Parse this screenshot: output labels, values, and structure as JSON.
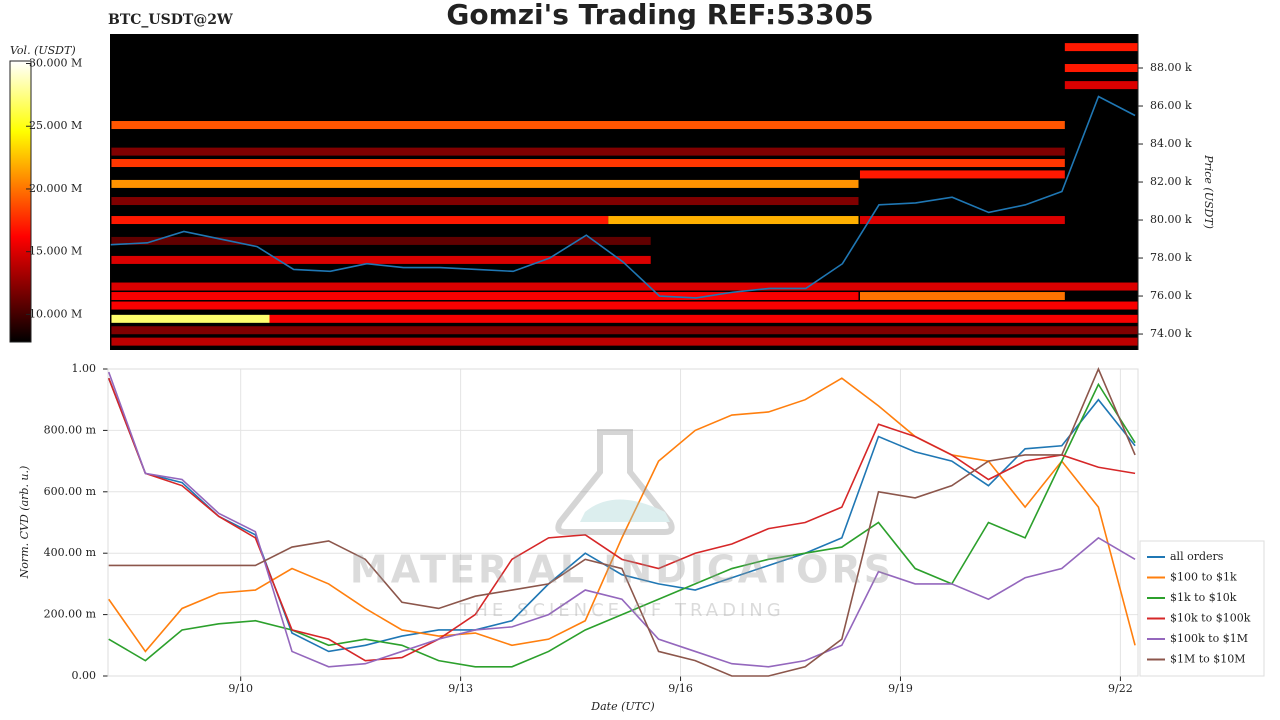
{
  "chart_data": [
    {
      "type": "heatmap",
      "title": "Gomzi's Trading REF:53305",
      "subtitle": "BTC_USDT@2W",
      "ylabel": "Price (USDT)",
      "xlim": [
        8.19,
        22.24
      ],
      "ylim": [
        73160,
        89790
      ],
      "yticks": [
        {
          "value": 74000,
          "label": "74.00 k"
        },
        {
          "value": 76000,
          "label": "76.00 k"
        },
        {
          "value": 78000,
          "label": "78.00 k"
        },
        {
          "value": 80000,
          "label": "80.00 k"
        },
        {
          "value": 82000,
          "label": "82.00 k"
        },
        {
          "value": 84000,
          "label": "84.00 k"
        },
        {
          "value": 86000,
          "label": "86.00 k"
        },
        {
          "value": 88000,
          "label": "88.00 k"
        }
      ],
      "colorbar": {
        "label": "Vol. (USDT)",
        "lim": [
          7800000,
          30200000
        ],
        "ticks": [
          {
            "value": 10000000,
            "label": "10.000 M"
          },
          {
            "value": 15000000,
            "label": "15.000 M"
          },
          {
            "value": 20000000,
            "label": "20.000 M"
          },
          {
            "value": 25000000,
            "label": "25.000 M"
          },
          {
            "value": 30000000,
            "label": "30.000 M"
          }
        ]
      },
      "bands": [
        {
          "price": 85000,
          "start": 8.21,
          "end": 21.24,
          "volume": 19000000
        },
        {
          "price": 83600,
          "start": 8.21,
          "end": 21.24,
          "volume": 12000000
        },
        {
          "price": 83000,
          "start": 8.21,
          "end": 21.24,
          "volume": 18000000
        },
        {
          "price": 81900,
          "start": 8.21,
          "end": 18.42,
          "volume": 21000000
        },
        {
          "price": 82400,
          "start": 18.44,
          "end": 21.24,
          "volume": 17000000
        },
        {
          "price": 81000,
          "start": 8.21,
          "end": 18.42,
          "volume": 12000000
        },
        {
          "price": 80000,
          "start": 8.21,
          "end": 15.0,
          "volume": 17000000
        },
        {
          "price": 80000,
          "start": 15.0,
          "end": 18.42,
          "volume": 22000000
        },
        {
          "price": 80000,
          "start": 18.44,
          "end": 21.24,
          "volume": 15000000
        },
        {
          "price": 78900,
          "start": 8.21,
          "end": 15.58,
          "volume": 11000000
        },
        {
          "price": 77900,
          "start": 8.21,
          "end": 15.58,
          "volume": 15000000
        },
        {
          "price": 76500,
          "start": 8.21,
          "end": 22.24,
          "volume": 15000000
        },
        {
          "price": 76000,
          "start": 8.21,
          "end": 18.42,
          "volume": 16000000
        },
        {
          "price": 76000,
          "start": 18.44,
          "end": 21.24,
          "volume": 20000000
        },
        {
          "price": 75500,
          "start": 8.21,
          "end": 22.24,
          "volume": 16000000
        },
        {
          "price": 74800,
          "start": 8.21,
          "end": 10.37,
          "volume": 27000000
        },
        {
          "price": 74800,
          "start": 10.37,
          "end": 22.24,
          "volume": 16000000
        },
        {
          "price": 74200,
          "start": 8.21,
          "end": 22.24,
          "volume": 12000000
        },
        {
          "price": 73600,
          "start": 8.21,
          "end": 22.24,
          "volume": 14000000
        },
        {
          "price": 89100,
          "start": 21.24,
          "end": 22.24,
          "volume": 17000000
        },
        {
          "price": 88000,
          "start": 21.24,
          "end": 22.24,
          "volume": 17000000
        },
        {
          "price": 87100,
          "start": 21.24,
          "end": 22.24,
          "volume": 15000000
        }
      ],
      "price": {
        "color": "#1f77b4",
        "x": [
          8.2,
          8.7,
          9.2,
          9.7,
          10.2,
          10.7,
          11.2,
          11.7,
          12.2,
          12.7,
          13.2,
          13.7,
          14.2,
          14.7,
          15.2,
          15.7,
          16.2,
          16.7,
          17.2,
          17.7,
          18.2,
          18.7,
          19.2,
          19.7,
          20.2,
          20.7,
          21.2,
          21.7,
          22.2
        ],
        "values": [
          78700,
          78800,
          79400,
          79000,
          78600,
          77400,
          77300,
          77700,
          77500,
          77500,
          77400,
          77300,
          78000,
          79200,
          77800,
          76000,
          75900,
          76200,
          76400,
          76400,
          77700,
          80800,
          80900,
          81200,
          80400,
          80800,
          81500,
          86500,
          85500
        ]
      }
    },
    {
      "type": "line",
      "xlabel": "Date (UTC)",
      "ylabel": "Norm. CVD (arb. u.)",
      "xlim": [
        8.19,
        22.24
      ],
      "ylim": [
        0,
        1
      ],
      "grid": true,
      "legend": "lower right",
      "xticks": [
        {
          "value": 10,
          "label": "9/10"
        },
        {
          "value": 13,
          "label": "9/13"
        },
        {
          "value": 16,
          "label": "9/16"
        },
        {
          "value": 19,
          "label": "9/19"
        },
        {
          "value": 22,
          "label": "9/22"
        }
      ],
      "yticks": [
        {
          "value": 0,
          "label": "0.00"
        },
        {
          "value": 0.2,
          "label": "200.00 m"
        },
        {
          "value": 0.4,
          "label": "400.00 m"
        },
        {
          "value": 0.6,
          "label": "600.00 m"
        },
        {
          "value": 0.8,
          "label": "800.00 m"
        },
        {
          "value": 1,
          "label": "1.00"
        }
      ],
      "x": [
        8.2,
        8.7,
        9.2,
        9.7,
        10.2,
        10.7,
        11.2,
        11.7,
        12.2,
        12.7,
        13.2,
        13.7,
        14.2,
        14.7,
        15.2,
        15.7,
        16.2,
        16.7,
        17.2,
        17.7,
        18.2,
        18.7,
        19.2,
        19.7,
        20.2,
        20.7,
        21.2,
        21.7,
        22.2
      ],
      "series": [
        {
          "name": "all orders",
          "color": "#1f77b4",
          "values": [
            0.97,
            0.66,
            0.63,
            0.52,
            0.46,
            0.14,
            0.08,
            0.1,
            0.13,
            0.15,
            0.15,
            0.18,
            0.3,
            0.4,
            0.33,
            0.3,
            0.28,
            0.32,
            0.36,
            0.4,
            0.45,
            0.78,
            0.73,
            0.7,
            0.62,
            0.74,
            0.75,
            0.9,
            0.75
          ]
        },
        {
          "name": "$100 to $1k",
          "color": "#ff7f0e",
          "values": [
            0.25,
            0.08,
            0.22,
            0.27,
            0.28,
            0.35,
            0.3,
            0.22,
            0.15,
            0.13,
            0.14,
            0.1,
            0.12,
            0.18,
            0.45,
            0.7,
            0.8,
            0.85,
            0.86,
            0.9,
            0.97,
            0.88,
            0.78,
            0.72,
            0.7,
            0.55,
            0.7,
            0.55,
            0.1
          ]
        },
        {
          "name": "$1k to $10k",
          "color": "#2ca02c",
          "values": [
            0.12,
            0.05,
            0.15,
            0.17,
            0.18,
            0.15,
            0.1,
            0.12,
            0.1,
            0.05,
            0.03,
            0.03,
            0.08,
            0.15,
            0.2,
            0.25,
            0.3,
            0.35,
            0.38,
            0.4,
            0.42,
            0.5,
            0.35,
            0.3,
            0.5,
            0.45,
            0.7,
            0.95,
            0.76
          ]
        },
        {
          "name": "$10k to $100k",
          "color": "#d62728",
          "values": [
            0.97,
            0.66,
            0.62,
            0.52,
            0.45,
            0.15,
            0.12,
            0.05,
            0.06,
            0.12,
            0.2,
            0.38,
            0.45,
            0.46,
            0.38,
            0.35,
            0.4,
            0.43,
            0.48,
            0.5,
            0.55,
            0.82,
            0.78,
            0.72,
            0.64,
            0.7,
            0.72,
            0.68,
            0.66
          ]
        },
        {
          "name": "$100k to $1M",
          "color": "#9467bd",
          "values": [
            0.99,
            0.66,
            0.64,
            0.53,
            0.47,
            0.08,
            0.03,
            0.04,
            0.08,
            0.12,
            0.15,
            0.16,
            0.2,
            0.28,
            0.25,
            0.12,
            0.08,
            0.04,
            0.03,
            0.05,
            0.1,
            0.34,
            0.3,
            0.3,
            0.25,
            0.32,
            0.35,
            0.45,
            0.38
          ]
        },
        {
          "name": "$1M to $10M",
          "color": "#8c564b",
          "values": [
            0.36,
            0.36,
            0.36,
            0.36,
            0.36,
            0.42,
            0.44,
            0.38,
            0.24,
            0.22,
            0.26,
            0.28,
            0.3,
            0.38,
            0.35,
            0.08,
            0.05,
            0,
            0,
            0.03,
            0.12,
            0.6,
            0.58,
            0.62,
            0.7,
            0.72,
            0.72,
            1,
            0.72
          ]
        }
      ]
    }
  ],
  "watermark": {
    "title": "MATERIAL INDICATORS",
    "tagline": "THE SCIENCE OF TRADING"
  }
}
